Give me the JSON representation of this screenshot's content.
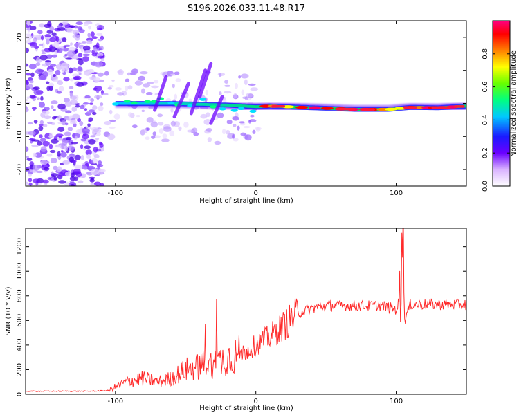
{
  "title": "S196.2026.033.11.48.R17",
  "chart_data": [
    {
      "type": "heatmap",
      "name": "spectrogram",
      "xlabel": "Height of straight line (km)",
      "ylabel": "Frequency (Hz)",
      "xlim": [
        -164,
        150
      ],
      "ylim": [
        -25,
        25
      ],
      "xticks": [
        -100,
        0,
        100
      ],
      "yticks": [
        -20,
        -10,
        0,
        10,
        20
      ],
      "colorbar": {
        "label": "Normalized spectral amplitude",
        "range": [
          0,
          1
        ],
        "ticks": [
          0.0,
          0.2,
          0.4,
          0.6,
          0.8
        ]
      },
      "ridge": [
        {
          "x": -100,
          "y": 0.0
        },
        {
          "x": -60,
          "y": 0.0
        },
        {
          "x": -20,
          "y": -0.5
        },
        {
          "x": 0,
          "y": -1.0
        },
        {
          "x": 10,
          "y": -0.8
        },
        {
          "x": 40,
          "y": -1.3
        },
        {
          "x": 70,
          "y": -1.8
        },
        {
          "x": 95,
          "y": -1.8
        },
        {
          "x": 110,
          "y": -1.2
        },
        {
          "x": 130,
          "y": -1.3
        },
        {
          "x": 150,
          "y": -0.8
        }
      ]
    },
    {
      "type": "line",
      "name": "snr",
      "xlabel": "Height of straight line (km)",
      "ylabel": "SNR (10 * v/v)",
      "xlim": [
        -164,
        150
      ],
      "ylim": [
        0,
        1350
      ],
      "xticks": [
        -100,
        0,
        100
      ],
      "yticks": [
        0,
        200,
        400,
        600,
        800,
        1000,
        1200
      ],
      "color": "#ff2a2a",
      "series": [
        {
          "name": "SNR",
          "x": [
            -164,
            -140,
            -120,
            -105,
            -100,
            -90,
            -80,
            -70,
            -60,
            -50,
            -40,
            -30,
            -20,
            -10,
            0,
            10,
            20,
            30,
            40,
            50,
            60,
            70,
            80,
            90,
            100,
            103,
            105,
            106,
            110,
            120,
            130,
            140,
            150
          ],
          "y": [
            25,
            25,
            25,
            30,
            60,
            110,
            130,
            100,
            130,
            200,
            230,
            250,
            300,
            330,
            400,
            470,
            560,
            660,
            700,
            720,
            720,
            720,
            720,
            720,
            690,
            780,
            1300,
            600,
            730,
            730,
            730,
            730,
            730
          ]
        }
      ]
    }
  ]
}
